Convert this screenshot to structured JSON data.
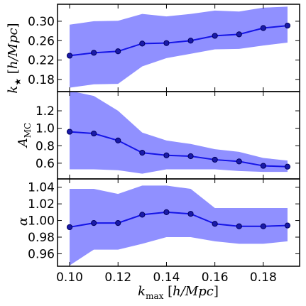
{
  "chart_data": [
    {
      "type": "line",
      "ylabel_parts": [
        "k",
        "★",
        " [",
        "h/Mpc",
        "]"
      ],
      "xlim": [
        0.095,
        0.195
      ],
      "ylim": [
        0.155,
        0.335
      ],
      "yticks": [
        0.18,
        0.22,
        0.26,
        0.3
      ],
      "ytick_labels": [
        "0.18",
        "0.22",
        "0.26",
        "0.30"
      ],
      "x": [
        0.1,
        0.11,
        0.12,
        0.13,
        0.14,
        0.15,
        0.16,
        0.17,
        0.18,
        0.19
      ],
      "series": [
        {
          "values": [
            0.229,
            0.235,
            0.238,
            0.254,
            0.255,
            0.26,
            0.27,
            0.273,
            0.286,
            0.291
          ]
        }
      ],
      "band_lower": [
        0.163,
        0.17,
        0.171,
        0.207,
        0.224,
        0.233,
        0.242,
        0.243,
        0.25,
        0.256
      ],
      "band_upper": [
        0.293,
        0.3,
        0.301,
        0.315,
        0.31,
        0.315,
        0.322,
        0.32,
        0.328,
        0.33
      ]
    },
    {
      "type": "line",
      "ylabel_parts": [
        "A",
        "MC"
      ],
      "xlim": [
        0.095,
        0.195
      ],
      "ylim": [
        0.42,
        1.42
      ],
      "yticks": [
        0.6,
        0.8,
        1.0,
        1.2
      ],
      "ytick_labels": [
        "0.6",
        "0.8",
        "1.0",
        "1.2"
      ],
      "x": [
        0.1,
        0.11,
        0.12,
        0.13,
        0.14,
        0.15,
        0.16,
        0.17,
        0.18,
        0.19
      ],
      "series": [
        {
          "values": [
            0.96,
            0.94,
            0.86,
            0.72,
            0.69,
            0.68,
            0.64,
            0.62,
            0.57,
            0.56
          ]
        }
      ],
      "band_lower": [
        0.53,
        0.53,
        0.52,
        0.48,
        0.53,
        0.53,
        0.53,
        0.51,
        0.5,
        0.5
      ],
      "band_upper": [
        1.43,
        1.37,
        1.2,
        0.95,
        0.86,
        0.82,
        0.76,
        0.73,
        0.66,
        0.63
      ]
    },
    {
      "type": "line",
      "ylabel_parts": [
        "α"
      ],
      "xlim": [
        0.095,
        0.195
      ],
      "ylim": [
        0.945,
        1.05
      ],
      "yticks": [
        0.96,
        0.98,
        1.0,
        1.02,
        1.04
      ],
      "ytick_labels": [
        "0.96",
        "0.98",
        "1.00",
        "1.02",
        "1.04"
      ],
      "x": [
        0.1,
        0.11,
        0.12,
        0.13,
        0.14,
        0.15,
        0.16,
        0.17,
        0.18,
        0.19
      ],
      "series": [
        {
          "values": [
            0.992,
            0.997,
            0.997,
            1.007,
            1.01,
            1.008,
            0.996,
            0.993,
            0.993,
            0.994
          ]
        }
      ],
      "band_lower": [
        0.946,
        0.965,
        0.965,
        0.972,
        0.98,
        0.98,
        0.975,
        0.972,
        0.972,
        0.975
      ],
      "band_upper": [
        1.038,
        1.038,
        1.032,
        1.042,
        1.042,
        1.038,
        1.015,
        1.015,
        1.015,
        1.015
      ],
      "xticks": [
        0.1,
        0.12,
        0.14,
        0.16,
        0.18
      ],
      "xtick_labels": [
        "0.10",
        "0.12",
        "0.14",
        "0.16",
        "0.18"
      ],
      "xlabel_parts": [
        "k",
        "max",
        " [",
        "h/Mpc",
        "]"
      ]
    }
  ],
  "colors": {
    "band": "#9090ff",
    "line": "#1414e6",
    "marker_face": "#1a1aa8",
    "marker_edge": "#000060",
    "axes": "#000000"
  }
}
